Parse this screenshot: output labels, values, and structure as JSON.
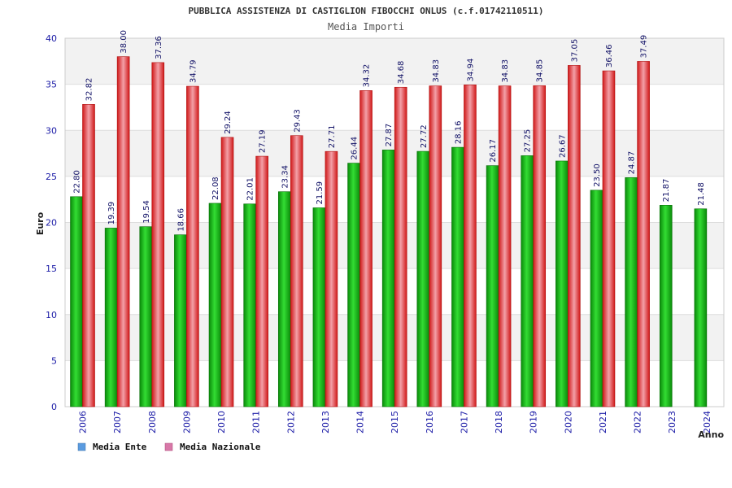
{
  "chart_data": {
    "type": "bar",
    "title": "PUBBLICA ASSISTENZA DI CASTIGLION FIBOCCHI ONLUS (c.f.01742110511)",
    "subtitle": "Media Importi",
    "ylabel": "Euro",
    "xlabel": "Anno",
    "ylim": [
      0,
      40
    ],
    "yticks": [
      "0",
      "5",
      "10",
      "15",
      "20",
      "25",
      "30",
      "35",
      "40"
    ],
    "categories": [
      "2006",
      "2007",
      "2008",
      "2009",
      "2010",
      "2011",
      "2012",
      "2013",
      "2014",
      "2015",
      "2016",
      "2017",
      "2018",
      "2019",
      "2020",
      "2021",
      "2022",
      "2023",
      "2024"
    ],
    "series": [
      {
        "name": "Media Ente",
        "color": "#10b010",
        "legend_color": "#5a9be0",
        "values": [
          22.8,
          19.39,
          19.54,
          18.66,
          22.08,
          22.01,
          23.34,
          21.59,
          26.44,
          27.87,
          27.72,
          28.16,
          26.17,
          27.25,
          26.67,
          23.5,
          24.87,
          21.87,
          21.48
        ],
        "labels": [
          "22.80",
          "19.39",
          "19.54",
          "18.66",
          "22.08",
          "22.01",
          "23.34",
          "21.59",
          "26.44",
          "27.87",
          "27.72",
          "28.16",
          "26.17",
          "27.25",
          "26.67",
          "23.50",
          "24.87",
          "21.87",
          "21.48"
        ]
      },
      {
        "name": "Media Nazionale",
        "color": "#e02020",
        "legend_color": "#d878a8",
        "values": [
          32.82,
          38.0,
          37.36,
          34.79,
          29.24,
          27.19,
          29.43,
          27.71,
          34.32,
          34.68,
          34.83,
          34.94,
          34.83,
          34.85,
          37.05,
          36.46,
          37.49,
          null,
          null
        ],
        "labels": [
          "32.82",
          "38.00",
          "37.36",
          "34.79",
          "29.24",
          "27.19",
          "29.43",
          "27.71",
          "34.32",
          "34.68",
          "34.83",
          "34.94",
          "34.83",
          "34.85",
          "37.05",
          "36.46",
          "37.49",
          "",
          ""
        ]
      }
    ],
    "grid": true,
    "legend_position": "bottom-left"
  }
}
